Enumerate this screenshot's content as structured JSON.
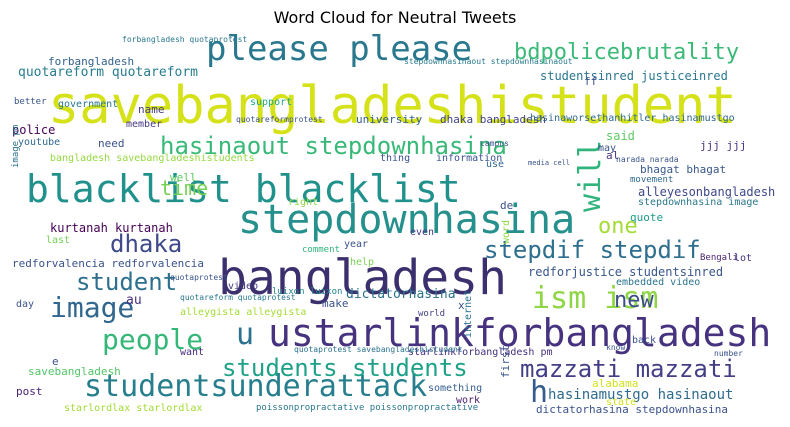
{
  "chart_data": {
    "type": "wordcloud",
    "title": "Word Cloud for Neutral Tweets",
    "colormap": "viridis",
    "words": [
      {
        "text": "savebangladeshistudent",
        "color": "#d5e21a"
      },
      {
        "text": "bangladesh",
        "color": "#3b2f6d"
      },
      {
        "text": "stepdownhasina",
        "color": "#25908c"
      },
      {
        "text": "ustarlinkforbangladesh",
        "color": "#46327e"
      },
      {
        "text": "blacklist blacklist",
        "color": "#21918c"
      },
      {
        "text": "please please",
        "color": "#2a788e"
      },
      {
        "text": "studentsunderattack",
        "color": "#277f8e"
      },
      {
        "text": "hasinaout stepdownhasina",
        "color": "#38b977"
      },
      {
        "text": "bdpolicebrutality",
        "color": "#3aba76"
      },
      {
        "text": "students students",
        "color": "#1fa188"
      },
      {
        "text": "mazzati mazzati",
        "color": "#433e85"
      },
      {
        "text": "image",
        "color": "#31678e"
      },
      {
        "text": "student",
        "color": "#2d708e"
      },
      {
        "text": "people",
        "color": "#35b779"
      },
      {
        "text": "stepdif stepdif",
        "color": "#2e6e8e"
      },
      {
        "text": "ism ism",
        "color": "#8ed645"
      },
      {
        "text": "will",
        "color": "#2fb47c"
      },
      {
        "text": "dhaka",
        "color": "#3e4a89"
      },
      {
        "text": "time",
        "color": "#75d054"
      },
      {
        "text": "one",
        "color": "#a5db36"
      },
      {
        "text": "new",
        "color": "#3d4d8a"
      },
      {
        "text": "h",
        "color": "#365c8d"
      },
      {
        "text": "u",
        "color": "#2c728e"
      },
      {
        "text": "hasinamustgo hasinaout",
        "color": "#2f6b8e"
      },
      {
        "text": "quotareform quotareform",
        "color": "#287d8e"
      },
      {
        "text": "forbangladesh",
        "color": "#33638d"
      },
      {
        "text": "studentsinred justiceinred",
        "color": "#2a768e"
      },
      {
        "text": "alleyesonbangladesh",
        "color": "#3f4788"
      },
      {
        "text": "kurtanah kurtanah",
        "color": "#440154"
      },
      {
        "text": "redforvalencia redforvalencia",
        "color": "#3b528b"
      },
      {
        "text": "redforjustice studentsinred",
        "color": "#39568c"
      },
      {
        "text": "dictatorhasina",
        "color": "#2c738e"
      },
      {
        "text": "embedded video",
        "color": "#2c738e"
      },
      {
        "text": "dhaka bangladesh",
        "color": "#414487"
      },
      {
        "text": "university",
        "color": "#355f8d"
      },
      {
        "text": "police",
        "color": "#440154"
      },
      {
        "text": "member",
        "color": "#443983"
      },
      {
        "text": "government",
        "color": "#2a788e"
      },
      {
        "text": "name",
        "color": "#443a83"
      },
      {
        "text": "support",
        "color": "#21a685"
      },
      {
        "text": "need",
        "color": "#3b528b"
      },
      {
        "text": "said",
        "color": "#5ec962"
      },
      {
        "text": "al",
        "color": "#46337f"
      },
      {
        "text": "bhagat bhagat",
        "color": "#38588c"
      },
      {
        "text": "stepdownhasina image",
        "color": "#2a788e"
      },
      {
        "text": "quote",
        "color": "#1e9b8a"
      },
      {
        "text": "hasinaworsethanhitler hasinamustgo",
        "color": "#31688e"
      },
      {
        "text": "bangladesh savebangladeshistudents",
        "color": "#95d840"
      },
      {
        "text": "savebangladesh",
        "color": "#52c569"
      },
      {
        "text": "starlinkforbangladesh pm",
        "color": "#46327e"
      },
      {
        "text": "dictatorhasina stepdownhasina",
        "color": "#3b528b"
      },
      {
        "text": "alabama",
        "color": "#d2e21b"
      },
      {
        "text": "starlordlax starlordlax",
        "color": "#a2da37"
      },
      {
        "text": "poissonpropractative poissonpropractative",
        "color": "#2a788e"
      },
      {
        "text": "jjj jjj",
        "color": "#46337f"
      },
      {
        "text": "make",
        "color": "#3b528b"
      },
      {
        "text": "video",
        "color": "#443a83"
      },
      {
        "text": "want",
        "color": "#472c7a"
      },
      {
        "text": "post",
        "color": "#482475"
      },
      {
        "text": "work",
        "color": "#481a6c"
      },
      {
        "text": "internet",
        "color": "#2c728e"
      },
      {
        "text": "first",
        "color": "#3b528b"
      },
      {
        "text": "back",
        "color": "#3b528b"
      },
      {
        "text": "last",
        "color": "#73d056"
      },
      {
        "text": "lot",
        "color": "#46337f"
      },
      {
        "text": "youtube",
        "color": "#31688e"
      },
      {
        "text": "even",
        "color": "#443983"
      },
      {
        "text": "right",
        "color": "#8fd744"
      },
      {
        "text": "comment",
        "color": "#2fb47c"
      },
      {
        "text": "help",
        "color": "#7ad151"
      },
      {
        "text": "year",
        "color": "#3b528b"
      },
      {
        "text": "thing",
        "color": "#3b528b"
      },
      {
        "text": "information",
        "color": "#3b528b"
      },
      {
        "text": "use",
        "color": "#31688e"
      },
      {
        "text": "movement",
        "color": "#31688e"
      },
      {
        "text": "Bengali",
        "color": "#481f70"
      },
      {
        "text": "quotareform quotaprotest",
        "color": "#2a788e"
      },
      {
        "text": "quotaprotest savebangladeshistudent",
        "color": "#2c728e"
      },
      {
        "text": "alleygista alleygista",
        "color": "#a5db36"
      },
      {
        "text": "luixon luixon",
        "color": "#25848e"
      },
      {
        "text": "something",
        "color": "#355f8d"
      },
      {
        "text": "day",
        "color": "#3b528b"
      },
      {
        "text": "au",
        "color": "#472f7d"
      },
      {
        "text": "e",
        "color": "#3b528b"
      },
      {
        "text": "x",
        "color": "#3b528b"
      },
      {
        "text": "de",
        "color": "#3b528b"
      },
      {
        "text": "image pm",
        "color": "#2c728e"
      },
      {
        "text": "world",
        "color": "#433e85"
      },
      {
        "text": "word",
        "color": "#8fd744"
      },
      {
        "text": "well",
        "color": "#5ec962"
      },
      {
        "text": "may",
        "color": "#3b528b"
      },
      {
        "text": "quotareformprotest",
        "color": "#3b528b"
      },
      {
        "text": "quotaprotest",
        "color": "#3b528b"
      },
      {
        "text": "forbangladesh quotaprotest",
        "color": "#2a788e"
      },
      {
        "text": "stepdownhasinaout stepdownhasinaout",
        "color": "#2a788e"
      },
      {
        "text": "better",
        "color": "#3b528b"
      },
      {
        "text": "state",
        "color": "#d2e21b"
      },
      {
        "text": "know",
        "color": "#3b528b"
      },
      {
        "text": "number",
        "color": "#3b528b"
      },
      {
        "text": "media cell",
        "color": "#3b528b"
      },
      {
        "text": "narada narada",
        "color": "#3b528b"
      },
      {
        "text": "campus",
        "color": "#3b528b"
      },
      {
        "text": "ff",
        "color": "#3b528b"
      }
    ]
  }
}
